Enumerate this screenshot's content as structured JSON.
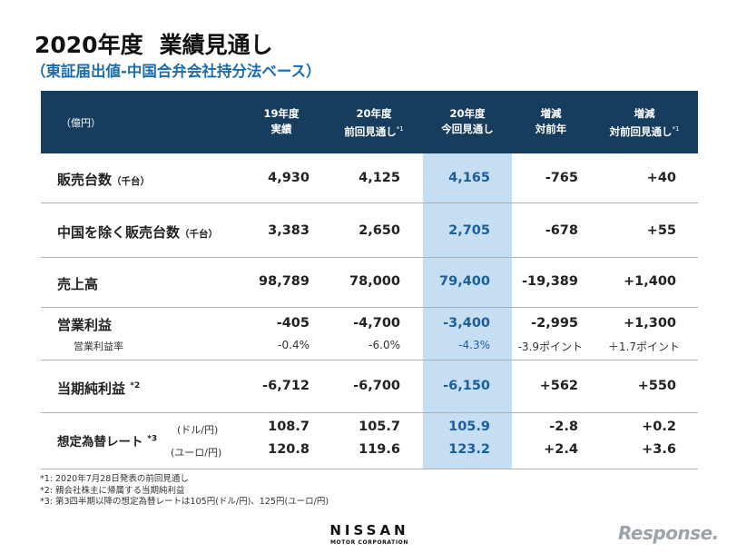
{
  "title": {
    "year": "2020年度",
    "main": "業績見通し",
    "subtitle": "（東証届出値-中国合弁会社持分法ベース）"
  },
  "header": {
    "unit": "（億円）",
    "col1": [
      "19年度",
      "実績"
    ],
    "col2": [
      "20年度",
      "前回見通し",
      "*1"
    ],
    "col3": [
      "20年度",
      "今回見通し"
    ],
    "col4": [
      "増減",
      "対前年"
    ],
    "col5": [
      "増減",
      "対前回見通し",
      "*1"
    ]
  },
  "rows": {
    "sales_units": {
      "label": "販売台数",
      "unit": "（千台）",
      "values": [
        "4,930",
        "4,125",
        "4,165",
        "-765",
        "+40"
      ]
    },
    "sales_ex_china": {
      "label": "中国を除く販売台数",
      "unit": "（千台）",
      "values": [
        "3,383",
        "2,650",
        "2,705",
        "-678",
        "+55"
      ]
    },
    "revenue": {
      "label": "売上高",
      "values": [
        "98,789",
        "78,000",
        "79,400",
        "-19,389",
        "+1,400"
      ]
    },
    "operating_profit": {
      "label": "営業利益",
      "values": [
        "-405",
        "-4,700",
        "-3,400",
        "-2,995",
        "+1,300"
      ],
      "sub_label": "営業利益率",
      "sub_values": [
        "-0.4%",
        "-6.0%",
        "-4.3%",
        "-3.9ポイント",
        "＋1.7ポイント"
      ]
    },
    "net_income": {
      "label": "当期純利益",
      "note": "*2",
      "values": [
        "-6,712",
        "-6,700",
        "-6,150",
        "+562",
        "+550"
      ]
    },
    "fx_rate": {
      "label": "想定為替レート",
      "note": "*3",
      "usd_label": "(ドル/円)",
      "usd_values": [
        "108.7",
        "105.7",
        "105.9",
        "-2.8",
        "+0.2"
      ],
      "eur_label": "(ユーロ/円)",
      "eur_values": [
        "120.8",
        "119.6",
        "123.2",
        "+2.4",
        "+3.6"
      ]
    }
  },
  "notes": [
    "*1: 2020年7月28日発表の前回見通し",
    "*2: 親会社株主に帰属する当期純利益",
    "*3: 第3四半期以降の想定為替レートは105円(ドル/円)、125円(ユーロ/円)"
  ],
  "brand": {
    "name": "NISSAN",
    "tagline": "MOTOR CORPORATION"
  },
  "watermark": {
    "text": "Response."
  },
  "colors": {
    "header_bg": "#173d5e",
    "highlight": "#c6def1",
    "subtitle": "#1c6dab"
  }
}
